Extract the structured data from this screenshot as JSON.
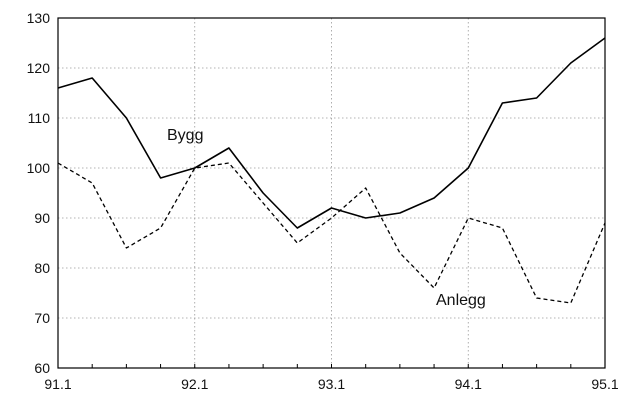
{
  "chart_data": {
    "type": "line",
    "x_ticks": [
      "91.1",
      "92.1",
      "93.1",
      "94.1",
      "95.1"
    ],
    "y_ticks": [
      "60",
      "70",
      "80",
      "90",
      "100",
      "110",
      "120",
      "130"
    ],
    "ylim": [
      60,
      130
    ],
    "grid": true,
    "x": [
      "91.1",
      "91.2",
      "91.3",
      "91.4",
      "92.1",
      "92.2",
      "92.3",
      "92.4",
      "93.1",
      "93.2",
      "93.3",
      "93.4",
      "94.1",
      "94.2",
      "94.3",
      "94.4",
      "95.1"
    ],
    "series": [
      {
        "name": "Bygg",
        "style": "solid",
        "values": [
          116,
          118,
          110,
          98,
          100,
          104,
          95,
          88,
          92,
          90,
          91,
          94,
          100,
          113,
          114,
          121,
          126
        ]
      },
      {
        "name": "Anlegg",
        "style": "dashed",
        "values": [
          101,
          97,
          84,
          88,
          100,
          101,
          93,
          85,
          90,
          96,
          83,
          76,
          90,
          88,
          74,
          73,
          89
        ]
      }
    ]
  }
}
